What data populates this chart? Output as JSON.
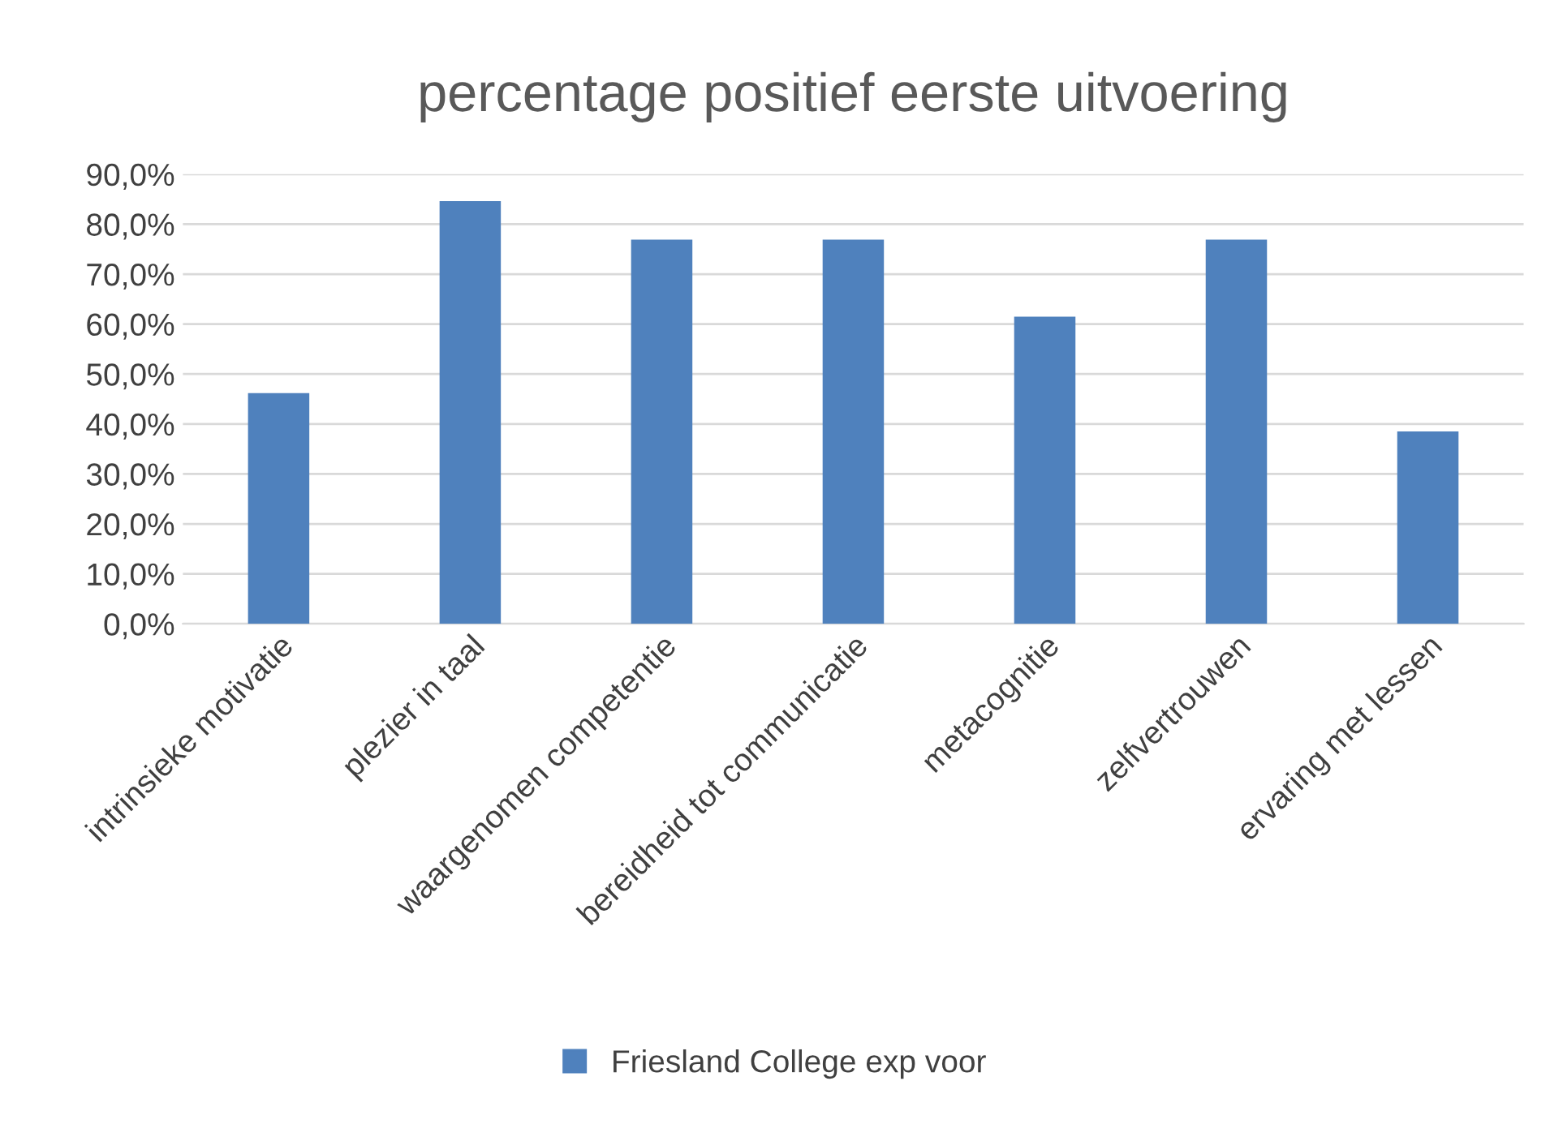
{
  "chart_data": {
    "type": "bar",
    "title": "percentage positief eerste uitvoering",
    "categories": [
      "intrinsieke motivatie",
      "plezier in taal",
      "waargenomen competentie",
      "bereidheid tot communicatie",
      "metacognitie",
      "zelfvertrouwen",
      "ervaring met lessen"
    ],
    "series": [
      {
        "name": "Friesland College exp voor",
        "color": "#4f81bd",
        "values": [
          46.2,
          84.6,
          76.9,
          76.9,
          61.5,
          76.9,
          38.5
        ]
      }
    ],
    "ylim": [
      0,
      90
    ],
    "yticks": [
      {
        "value": 0,
        "label": "0,0%"
      },
      {
        "value": 10,
        "label": "10,0%"
      },
      {
        "value": 20,
        "label": "20,0%"
      },
      {
        "value": 30,
        "label": "30,0%"
      },
      {
        "value": 40,
        "label": "40,0%"
      },
      {
        "value": 50,
        "label": "50,0%"
      },
      {
        "value": 60,
        "label": "60,0%"
      },
      {
        "value": 70,
        "label": "70,0%"
      },
      {
        "value": 80,
        "label": "80,0%"
      },
      {
        "value": 90,
        "label": "90,0%"
      }
    ],
    "grid": "y",
    "legend": "bottom"
  }
}
